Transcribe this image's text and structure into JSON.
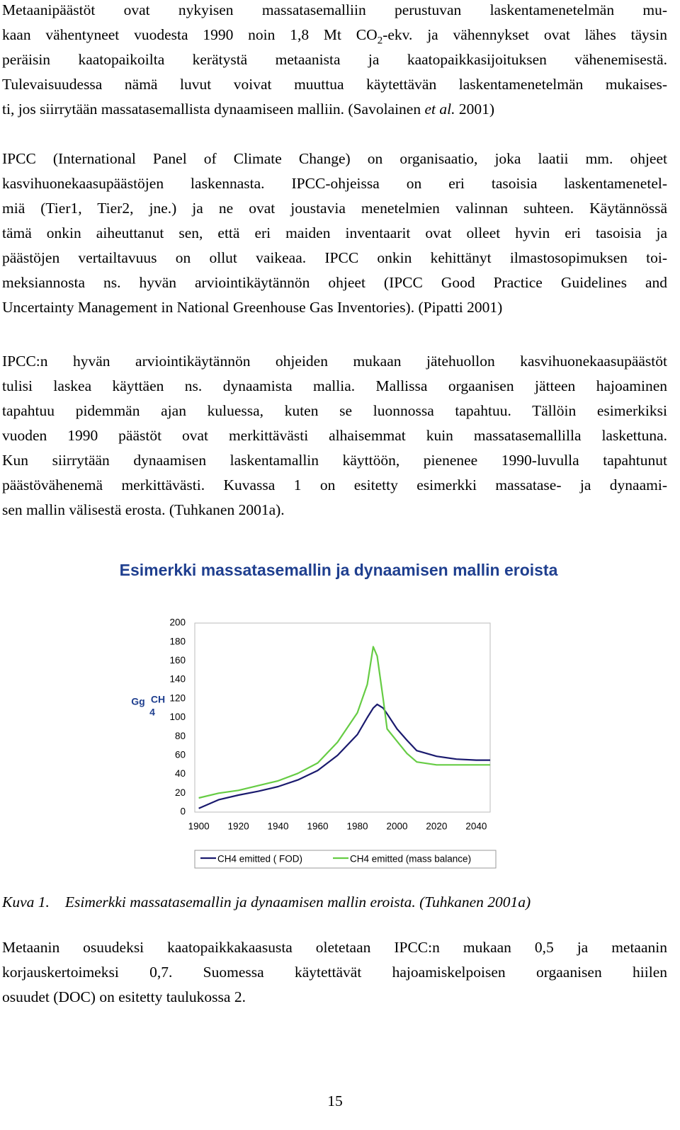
{
  "paragraphs": [
    {
      "lines": [
        "Metaanipäästöt ovat nykyisen massatasemalliin perustuvan laskentamenetelmän mu-",
        [
          "kaan vähentyneet vuodesta 1990 noin 1,8 Mt CO",
          {
            "sub": "2"
          },
          "-ekv. ja vähennykset ovat lähes täysin"
        ],
        "peräisin kaatopaikoilta kerätystä metaanista ja kaatopaikkasijoituksen vähenemisestä.",
        "Tulevaisuudessa nämä luvut voivat muuttua käytettävän laskentamenetelmän mukaises-",
        [
          "ti, jos siirrytään massatasemallista dynaamiseen malliin. (Savolainen ",
          {
            "em": "et al."
          },
          " 2001)"
        ]
      ]
    },
    {
      "lines": [
        "IPCC (International Panel of Climate Change) on organisaatio, joka laatii mm. ohjeet",
        "kasvihuonekaasupäästöjen laskennasta. IPCC-ohjeissa on eri tasoisia laskentamenetel-",
        "miä (Tier1, Tier2, jne.) ja ne ovat joustavia menetelmien valinnan suhteen. Käytännössä",
        "tämä onkin aiheuttanut sen, että eri maiden inventaarit ovat olleet hyvin eri tasoisia ja",
        "päästöjen vertailtavuus on ollut vaikeaa. IPCC onkin kehittänyt ilmastosopimuksen toi-",
        "meksiannosta ns. hyvän arviointikäytännön ohjeet (IPCC Good Practice Guidelines and",
        "Uncertainty Management in National Greenhouse Gas Inventories). (Pipatti 2001)"
      ]
    },
    {
      "lines": [
        "IPCC:n hyvän arviointikäytännön ohjeiden mukaan jätehuollon kasvihuonekaasupäästöt",
        "tulisi laskea käyttäen ns. dynaamista mallia. Mallissa orgaanisen jätteen hajoaminen",
        "tapahtuu pidemmän ajan kuluessa, kuten se luonnossa tapahtuu. Tällöin esimerkiksi",
        "vuoden 1990 päästöt ovat merkittävästi alhaisemmat kuin massatasemallilla laskettuna.",
        "Kun siirrytään dynaamisen laskentamallin käyttöön, pienenee 1990-luvulla tapahtunut",
        "päästövähenemä merkittävästi. Kuvassa 1 on esitetty esimerkki massatase- ja dynaami-",
        "sen mallin välisestä erosta. (Tuhkanen 2001a)."
      ]
    },
    {
      "lines": [
        "Metaanin osuudeksi kaatopaikkakaasusta oletetaan IPCC:n mukaan 0,5 ja metaanin",
        "korjauskertoimeksi 0,7. Suomessa käytettävät hajoamiskelpoisen orgaanisen hiilen",
        "osuudet (DOC) on esitetty taulukossa 2."
      ]
    }
  ],
  "chart_data": {
    "type": "line",
    "title": "Esimerkki massatasemallin ja dynaamisen mallin eroista",
    "ylabel": [
      "Gg",
      "CH",
      "4"
    ],
    "x": [
      1900,
      1910,
      1920,
      1930,
      1940,
      1950,
      1960,
      1970,
      1980,
      1985,
      1988,
      1990,
      1993,
      1995,
      2000,
      2005,
      2010,
      2020,
      2030,
      2040,
      2047
    ],
    "series": [
      {
        "name": "CH4 emitted ( FOD)",
        "color": "#1a1a6e",
        "values": [
          4,
          13,
          18,
          22,
          27,
          34,
          44,
          60,
          82,
          100,
          110,
          114,
          110,
          104,
          88,
          76,
          65,
          59,
          56,
          55,
          55
        ]
      },
      {
        "name": "CH4 emitted (mass balance)",
        "color": "#66cc44",
        "values": [
          15,
          20,
          23,
          28,
          33,
          41,
          52,
          74,
          105,
          135,
          175,
          165,
          120,
          88,
          75,
          62,
          53,
          50,
          50,
          50,
          50
        ]
      }
    ],
    "xlim": [
      1898,
      2047
    ],
    "xticks": [
      1900,
      1920,
      1940,
      1960,
      1980,
      2000,
      2020,
      2040
    ],
    "ylim": [
      0,
      200
    ],
    "yticks": [
      0,
      20,
      40,
      60,
      80,
      100,
      120,
      140,
      160,
      180,
      200
    ],
    "grid": false
  },
  "caption": {
    "label": "Kuva 1.",
    "text": "Esimerkki massatasemallin ja dynaamisen mallin eroista. (Tuhkanen 2001a)"
  },
  "page_number": "15"
}
